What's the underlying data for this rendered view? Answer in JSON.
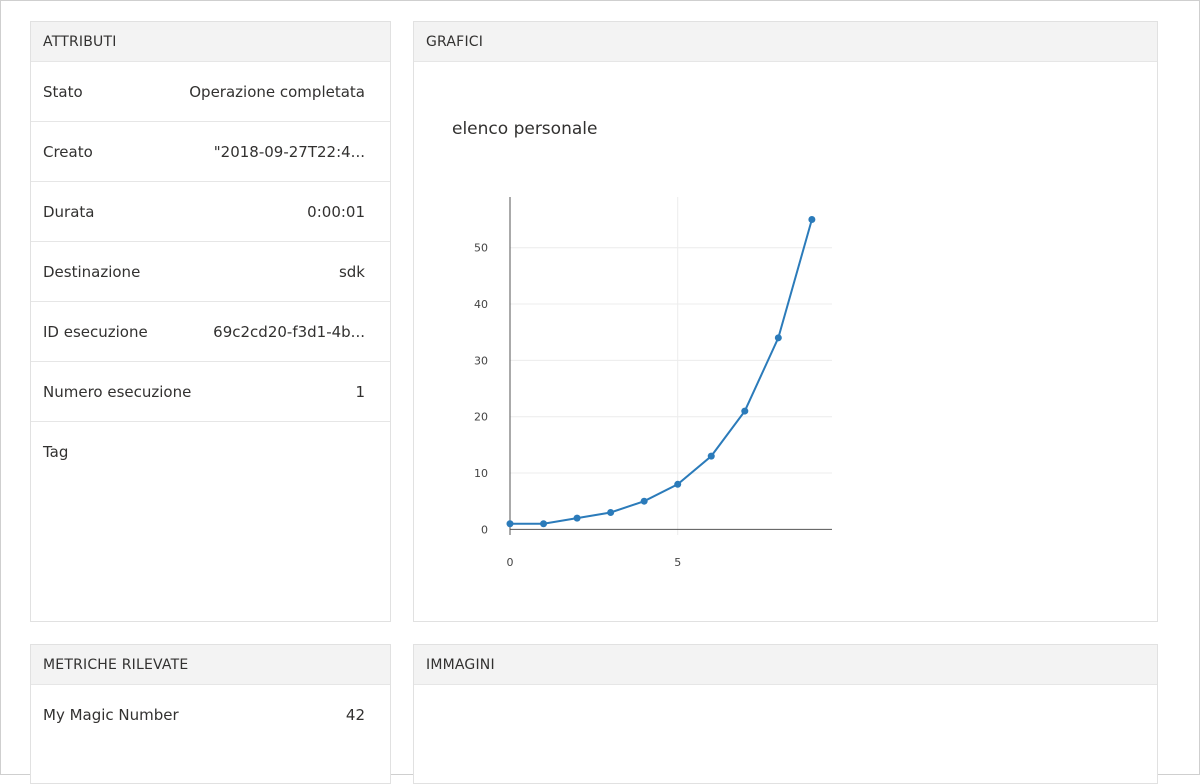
{
  "attributes": {
    "title": "ATTRIBUTI",
    "rows": [
      {
        "label": "Stato",
        "value": "Operazione completata"
      },
      {
        "label": "Creato",
        "value": "\"2018-09-27T22:4..."
      },
      {
        "label": "Durata",
        "value": "0:00:01"
      },
      {
        "label": "Destinazione",
        "value": "sdk"
      },
      {
        "label": "ID esecuzione",
        "value": "69c2cd20-f3d1-4b..."
      },
      {
        "label": "Numero esecuzione",
        "value": "1"
      },
      {
        "label": "Tag",
        "value": ""
      }
    ]
  },
  "charts": {
    "title": "GRAFICI"
  },
  "chart_data": {
    "type": "line",
    "title": "elenco personale",
    "xlabel": "",
    "ylabel": "",
    "x": [
      0,
      1,
      2,
      3,
      4,
      5,
      6,
      7,
      8,
      9
    ],
    "series": [
      {
        "values": [
          1,
          1,
          2,
          3,
          5,
          8,
          13,
          21,
          34,
          55
        ]
      }
    ],
    "x_ticks": [
      0,
      5
    ],
    "y_ticks": [
      0,
      10,
      20,
      30,
      40,
      50
    ],
    "xlim": [
      0,
      9.6
    ],
    "ylim": [
      -1,
      59
    ],
    "grid": true,
    "legend": "none",
    "line_color": "#2b7bba"
  },
  "metrics": {
    "title": "METRICHE RILEVATE",
    "rows": [
      {
        "label": "My Magic Number",
        "value": "42"
      }
    ]
  },
  "images": {
    "title": "IMMAGINI"
  }
}
